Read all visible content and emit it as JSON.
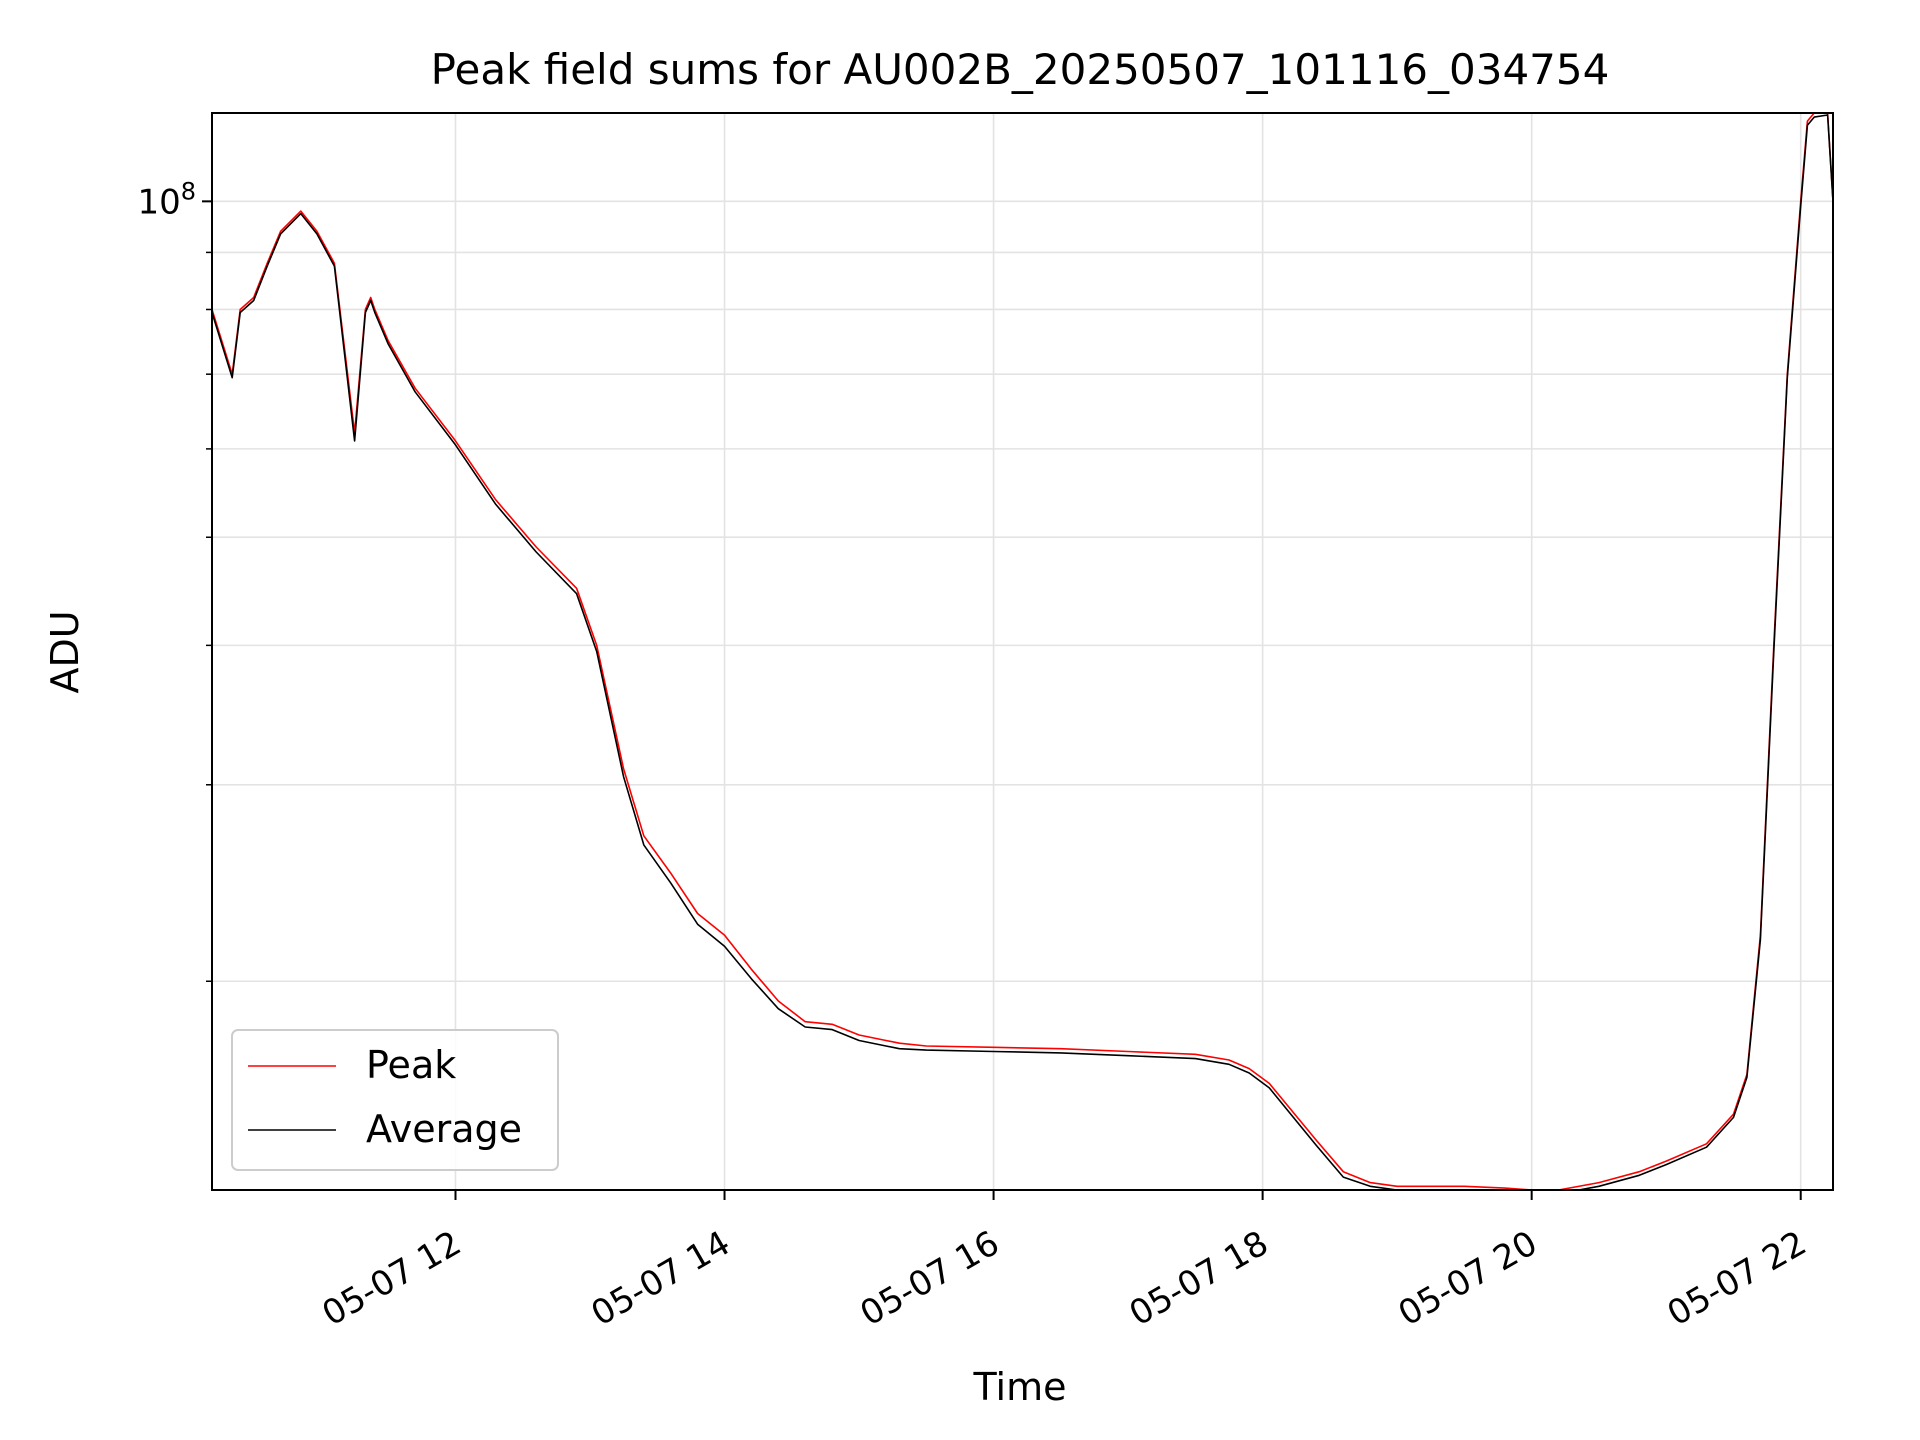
{
  "chart_data": {
    "type": "line",
    "title": "Peak field sums for AU002B_20250507_101116_034754",
    "xlabel": "Time",
    "ylabel": "ADU",
    "yscale": "log",
    "y_tick_label": {
      "base": "10",
      "exponent": "8"
    },
    "y_major_tick": 100000000,
    "y_minor_ticks": [
      20000000,
      30000000,
      40000000,
      50000000,
      60000000,
      70000000,
      80000000,
      90000000
    ],
    "ylim": [
      13000000,
      120000000
    ],
    "xlim_hours": [
      10.19,
      22.24
    ],
    "x_ticks": [
      {
        "hour": 12,
        "label": "05-07 12"
      },
      {
        "hour": 14,
        "label": "05-07 14"
      },
      {
        "hour": 16,
        "label": "05-07 16"
      },
      {
        "hour": 18,
        "label": "05-07 18"
      },
      {
        "hour": 20,
        "label": "05-07 20"
      },
      {
        "hour": 22,
        "label": "05-07 22"
      }
    ],
    "grid": true,
    "legend": {
      "position": "lower-left",
      "entries": [
        "Peak",
        "Average"
      ]
    },
    "series": [
      {
        "name": "Peak",
        "color": "#ff0000",
        "x": [
          10.19,
          10.34,
          10.4,
          10.5,
          10.6,
          10.7,
          10.85,
          10.97,
          11.1,
          11.25,
          11.33,
          11.37,
          11.4,
          11.5,
          11.7,
          12.0,
          12.3,
          12.6,
          12.9,
          13.05,
          13.25,
          13.4,
          13.6,
          13.8,
          14.0,
          14.2,
          14.4,
          14.6,
          14.8,
          15.0,
          15.2,
          15.3,
          15.5,
          16.0,
          16.5,
          17.0,
          17.5,
          17.75,
          17.9,
          18.05,
          18.2,
          18.4,
          18.6,
          18.8,
          19.0,
          19.2,
          19.5,
          19.8,
          20.0,
          20.2,
          20.5,
          20.8,
          21.0,
          21.3,
          21.5,
          21.6,
          21.7,
          21.8,
          21.9,
          22.0,
          22.05,
          22.1,
          22.2,
          22.24
        ],
        "y": [
          80000000,
          70000000,
          80000000,
          82000000,
          88000000,
          94000000,
          98000000,
          94000000,
          88000000,
          62000000,
          80000000,
          82000000,
          80000000,
          75000000,
          68000000,
          61000000,
          54000000,
          49000000,
          45000000,
          40000000,
          31000000,
          27000000,
          25000000,
          23000000,
          22000000,
          20500000,
          19200000,
          18400000,
          18300000,
          17900000,
          17700000,
          17600000,
          17500000,
          17450000,
          17400000,
          17300000,
          17200000,
          17000000,
          16700000,
          16200000,
          15400000,
          14400000,
          13500000,
          13200000,
          13100000,
          13100000,
          13100000,
          13050000,
          13000000,
          13000000,
          13200000,
          13500000,
          13800000,
          14300000,
          15200000,
          16500000,
          22000000,
          40000000,
          70000000,
          100000000,
          118000000,
          120000000,
          120000000,
          100000000
        ]
      },
      {
        "name": "Average",
        "color": "#000000",
        "x": [
          10.19,
          10.34,
          10.4,
          10.5,
          10.6,
          10.7,
          10.85,
          10.97,
          11.1,
          11.25,
          11.33,
          11.37,
          11.4,
          11.5,
          11.7,
          12.0,
          12.3,
          12.6,
          12.9,
          13.05,
          13.25,
          13.4,
          13.6,
          13.8,
          14.0,
          14.2,
          14.4,
          14.6,
          14.8,
          15.0,
          15.2,
          15.3,
          15.5,
          16.0,
          16.5,
          17.0,
          17.5,
          17.75,
          17.9,
          18.05,
          18.2,
          18.4,
          18.6,
          18.8,
          19.0,
          19.2,
          19.5,
          19.8,
          20.0,
          20.2,
          20.5,
          20.8,
          21.0,
          21.3,
          21.5,
          21.6,
          21.7,
          21.8,
          21.9,
          22.0,
          22.05,
          22.1,
          22.2,
          22.24
        ],
        "y": [
          79500000,
          69500000,
          79500000,
          81500000,
          87500000,
          93500000,
          97500000,
          93500000,
          87500000,
          61000000,
          79500000,
          81500000,
          79500000,
          74500000,
          67500000,
          60500000,
          53500000,
          48500000,
          44500000,
          39500000,
          30500000,
          26500000,
          24500000,
          22500000,
          21500000,
          20100000,
          18900000,
          18200000,
          18100000,
          17700000,
          17500000,
          17400000,
          17350000,
          17300000,
          17250000,
          17150000,
          17050000,
          16850000,
          16550000,
          16050000,
          15250000,
          14250000,
          13350000,
          13100000,
          13000000,
          13000000,
          13000000,
          12950000,
          12900000,
          12900000,
          13100000,
          13400000,
          13700000,
          14200000,
          15100000,
          16400000,
          21800000,
          39500000,
          69500000,
          99000000,
          117000000,
          119000000,
          119500000,
          100000000
        ]
      }
    ]
  }
}
